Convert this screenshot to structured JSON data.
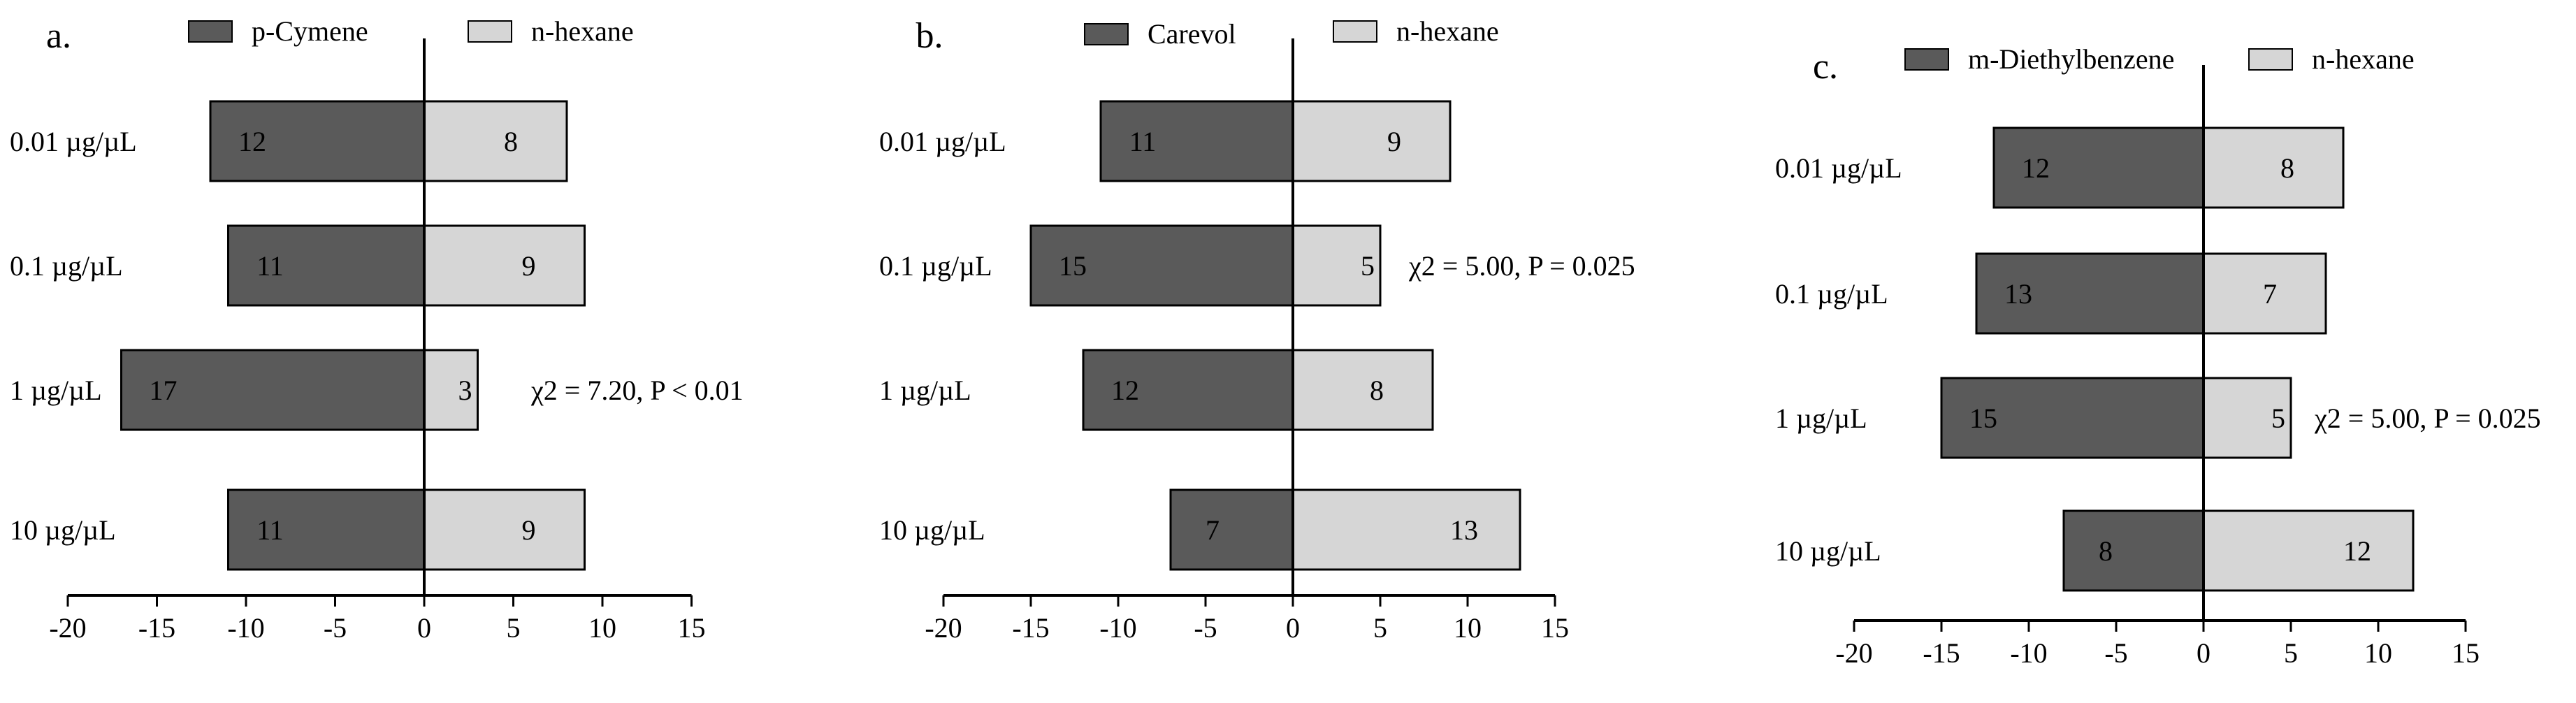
{
  "colors": {
    "dark": "#5a5a5a",
    "light": "#d6d6d6",
    "stroke": "#000000"
  },
  "chart_data": [
    {
      "type": "bar",
      "orientation": "horizontal-diverging",
      "panel_label": "a.",
      "categories": [
        "0.01 µg/µL",
        "0.1 µg/µL",
        "1 µg/µL",
        "10 µg/µL"
      ],
      "series": [
        {
          "name": "p-Cymene",
          "values": [
            12,
            11,
            17,
            11
          ],
          "direction": "negative"
        },
        {
          "name": "n-hexane",
          "values": [
            8,
            9,
            3,
            9
          ],
          "direction": "positive"
        }
      ],
      "xlim": [
        -20,
        15
      ],
      "xticks": [
        "-20",
        "-15",
        "-10",
        "-5",
        "0",
        "5",
        "10",
        "15"
      ],
      "annotations": [
        {
          "category_index": 2,
          "text": "χ2 = 7.20, P < 0.01"
        }
      ],
      "legend_position": "top"
    },
    {
      "type": "bar",
      "orientation": "horizontal-diverging",
      "panel_label": "b.",
      "categories": [
        "0.01 µg/µL",
        "0.1 µg/µL",
        "1 µg/µL",
        "10 µg/µL"
      ],
      "series": [
        {
          "name": "Carevol",
          "values": [
            11,
            15,
            12,
            7
          ],
          "direction": "negative"
        },
        {
          "name": "n-hexane",
          "values": [
            9,
            5,
            8,
            13
          ],
          "direction": "positive"
        }
      ],
      "xlim": [
        -20,
        15
      ],
      "xticks": [
        "-20",
        "-15",
        "-10",
        "-5",
        "0",
        "5",
        "10",
        "15"
      ],
      "annotations": [
        {
          "category_index": 1,
          "text": "χ2 = 5.00, P = 0.025"
        }
      ],
      "legend_position": "top"
    },
    {
      "type": "bar",
      "orientation": "horizontal-diverging",
      "panel_label": "c.",
      "categories": [
        "0.01 µg/µL",
        "0.1 µg/µL",
        "1 µg/µL",
        "10 µg/µL"
      ],
      "series": [
        {
          "name": "m-Diethylbenzene",
          "values": [
            12,
            13,
            15,
            8
          ],
          "direction": "negative"
        },
        {
          "name": "n-hexane",
          "values": [
            8,
            7,
            5,
            12
          ],
          "direction": "positive"
        }
      ],
      "xlim": [
        -20,
        15
      ],
      "xticks": [
        "-20",
        "-15",
        "-10",
        "-5",
        "0",
        "5",
        "10",
        "15"
      ],
      "annotations": [
        {
          "category_index": 2,
          "text": "χ2 = 5.00, P = 0.025"
        }
      ],
      "legend_position": "top"
    }
  ]
}
